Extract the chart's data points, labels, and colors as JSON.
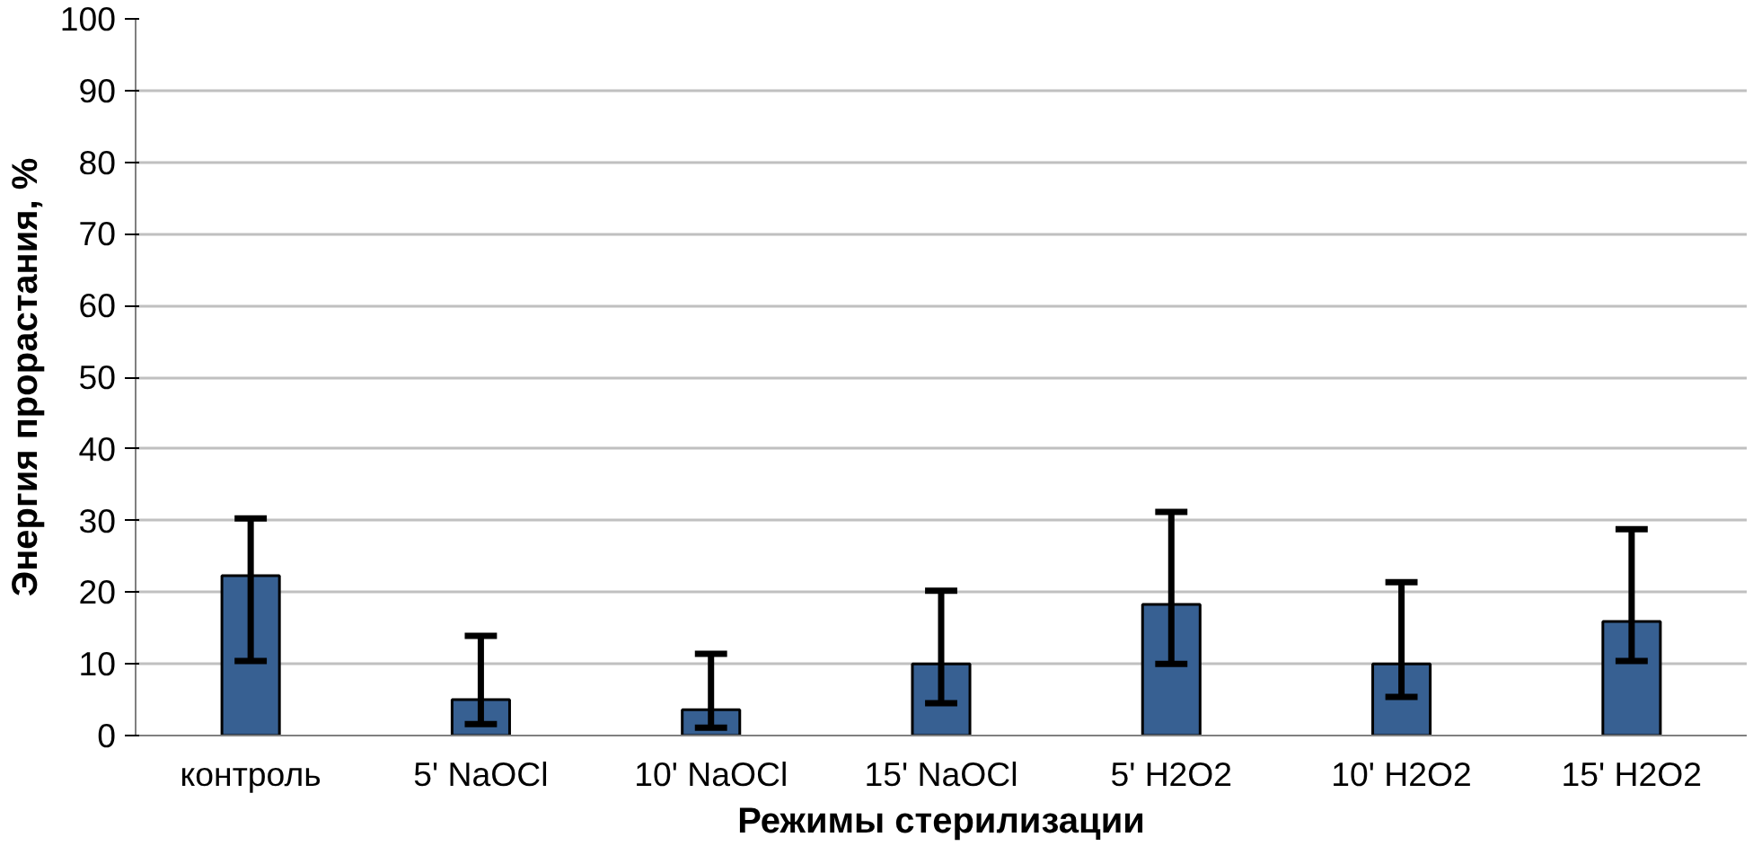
{
  "chart_data": {
    "type": "bar",
    "xlabel": "Режимы стерилизации",
    "ylabel": "Энергия прорастания, %",
    "categories": [
      "контроль",
      "5' NaOCl",
      "10' NaOCl",
      "15' NaOCl",
      "5' H2O2",
      "10' H2O2",
      "15' H2O2"
    ],
    "values": [
      22.3,
      5.0,
      3.6,
      10.0,
      18.3,
      10.0,
      15.9
    ],
    "errors": [
      [
        10.4,
        30.3
      ],
      [
        1.6,
        13.9
      ],
      [
        1.1,
        11.4
      ],
      [
        4.5,
        20.2
      ],
      [
        10.0,
        31.2
      ],
      [
        5.4,
        21.4
      ],
      [
        10.4,
        28.8
      ]
    ],
    "color": "#376092",
    "ylim": [
      0,
      100
    ],
    "yticks": [
      0,
      10,
      20,
      30,
      40,
      50,
      60,
      70,
      80,
      90,
      100
    ],
    "grid": "y"
  }
}
